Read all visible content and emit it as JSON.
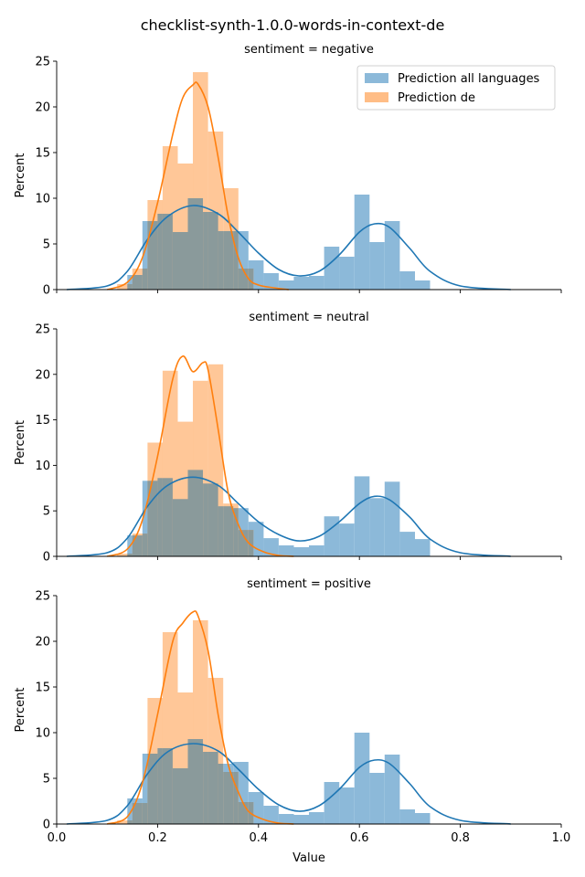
{
  "suptitle": "checklist-synth-1.0.0-words-in-context-de",
  "legend": {
    "placement": "top-right of first panel",
    "entries": [
      "Prediction all languages",
      "Prediction de"
    ]
  },
  "colors": {
    "all": "#1f77b4",
    "de": "#ff7f0e",
    "all_fill": "#8cb9d9",
    "de_fill": "#ffbd86",
    "overlap_fill": "#8a9a9b"
  },
  "chart_data": [
    {
      "type": "histogram",
      "title": "sentiment = negative",
      "xlabel": "",
      "ylabel": "Percent",
      "xlim": [
        0.0,
        1.0
      ],
      "ylim": [
        0,
        25
      ],
      "xticks": [
        "0.0",
        "0.2",
        "0.4",
        "0.6",
        "0.8",
        "1.0"
      ],
      "yticks": [
        "0",
        "5",
        "10",
        "15",
        "20",
        "25"
      ],
      "bin_width": 0.03,
      "series": [
        {
          "name": "Prediction all languages",
          "bin_starts": [
            0.14,
            0.17,
            0.2,
            0.23,
            0.26,
            0.29,
            0.32,
            0.35,
            0.38,
            0.41,
            0.44,
            0.47,
            0.5,
            0.53,
            0.56,
            0.59,
            0.62,
            0.65,
            0.68,
            0.71
          ],
          "values": [
            1.6,
            7.5,
            8.3,
            6.3,
            10.0,
            8.5,
            6.4,
            6.4,
            3.2,
            1.8,
            1.0,
            1.4,
            1.5,
            4.7,
            3.6,
            10.4,
            5.2,
            7.5,
            2.0,
            1.0
          ],
          "kde_x": [
            0.02,
            0.1,
            0.14,
            0.18,
            0.22,
            0.27,
            0.32,
            0.36,
            0.4,
            0.44,
            0.48,
            0.52,
            0.56,
            0.6,
            0.63,
            0.66,
            0.7,
            0.74,
            0.8,
            0.9
          ],
          "kde_y": [
            0.0,
            0.4,
            2.0,
            5.5,
            8.0,
            9.2,
            8.3,
            6.3,
            4.0,
            2.2,
            1.5,
            2.0,
            3.8,
            6.3,
            7.2,
            6.8,
            4.5,
            2.0,
            0.4,
            0.0
          ]
        },
        {
          "name": "Prediction de",
          "bin_starts": [
            0.12,
            0.15,
            0.18,
            0.21,
            0.24,
            0.27,
            0.3,
            0.33,
            0.36
          ],
          "values": [
            0.6,
            2.3,
            9.8,
            15.7,
            13.8,
            23.8,
            17.3,
            11.1,
            2.3
          ],
          "kde_x": [
            0.1,
            0.14,
            0.17,
            0.2,
            0.23,
            0.25,
            0.27,
            0.28,
            0.3,
            0.32,
            0.34,
            0.36,
            0.38,
            0.4,
            0.43,
            0.46
          ],
          "kde_y": [
            0.0,
            0.8,
            3.5,
            9.5,
            17.0,
            21.0,
            22.4,
            22.5,
            20.0,
            14.5,
            8.0,
            3.5,
            1.2,
            0.5,
            0.2,
            0.0
          ]
        }
      ]
    },
    {
      "type": "histogram",
      "title": "sentiment = neutral",
      "xlabel": "",
      "ylabel": "Percent",
      "xlim": [
        0.0,
        1.0
      ],
      "ylim": [
        0,
        25
      ],
      "xticks": [
        "0.0",
        "0.2",
        "0.4",
        "0.6",
        "0.8",
        "1.0"
      ],
      "yticks": [
        "0",
        "5",
        "10",
        "15",
        "20",
        "25"
      ],
      "bin_width": 0.03,
      "series": [
        {
          "name": "Prediction all languages",
          "bin_starts": [
            0.14,
            0.17,
            0.2,
            0.23,
            0.26,
            0.29,
            0.32,
            0.35,
            0.38,
            0.41,
            0.44,
            0.47,
            0.5,
            0.53,
            0.56,
            0.59,
            0.62,
            0.65,
            0.68,
            0.71
          ],
          "values": [
            2.3,
            8.3,
            8.6,
            6.3,
            9.5,
            8.0,
            5.5,
            5.3,
            3.8,
            2.0,
            1.2,
            1.0,
            1.2,
            4.4,
            3.6,
            8.8,
            6.4,
            8.2,
            2.7,
            1.9
          ],
          "kde_x": [
            0.02,
            0.1,
            0.14,
            0.18,
            0.22,
            0.27,
            0.32,
            0.36,
            0.4,
            0.44,
            0.48,
            0.52,
            0.56,
            0.6,
            0.63,
            0.66,
            0.7,
            0.74,
            0.8,
            0.9
          ],
          "kde_y": [
            0.0,
            0.4,
            2.0,
            5.5,
            7.8,
            8.7,
            7.8,
            5.8,
            3.8,
            2.4,
            1.7,
            2.2,
            3.8,
            5.8,
            6.6,
            6.2,
            4.3,
            1.9,
            0.4,
            0.0
          ]
        },
        {
          "name": "Prediction de",
          "bin_starts": [
            0.12,
            0.15,
            0.18,
            0.21,
            0.24,
            0.27,
            0.3,
            0.33,
            0.36
          ],
          "values": [
            0.3,
            2.5,
            12.5,
            20.4,
            14.8,
            19.3,
            21.1,
            5.8,
            2.9
          ],
          "kde_x": [
            0.1,
            0.14,
            0.17,
            0.2,
            0.23,
            0.25,
            0.27,
            0.29,
            0.3,
            0.32,
            0.34,
            0.36,
            0.38,
            0.41,
            0.44,
            0.47
          ],
          "kde_y": [
            0.0,
            0.8,
            4.0,
            11.0,
            19.5,
            22.0,
            20.3,
            21.3,
            20.5,
            14.0,
            7.0,
            3.5,
            1.5,
            0.5,
            0.1,
            0.0
          ]
        }
      ]
    },
    {
      "type": "histogram",
      "title": "sentiment = positive",
      "xlabel": "Value",
      "ylabel": "Percent",
      "xlim": [
        0.0,
        1.0
      ],
      "ylim": [
        0,
        25
      ],
      "xticks": [
        "0.0",
        "0.2",
        "0.4",
        "0.6",
        "0.8",
        "1.0"
      ],
      "yticks": [
        "0",
        "5",
        "10",
        "15",
        "20",
        "25"
      ],
      "bin_width": 0.03,
      "series": [
        {
          "name": "Prediction all languages",
          "bin_starts": [
            0.14,
            0.17,
            0.2,
            0.23,
            0.26,
            0.29,
            0.32,
            0.35,
            0.38,
            0.41,
            0.44,
            0.47,
            0.5,
            0.53,
            0.56,
            0.59,
            0.62,
            0.65,
            0.68,
            0.71
          ],
          "values": [
            2.8,
            7.7,
            8.3,
            6.1,
            9.3,
            7.9,
            6.6,
            6.8,
            3.5,
            2.0,
            1.1,
            1.0,
            1.3,
            4.6,
            4.0,
            10.0,
            5.6,
            7.6,
            1.6,
            1.2
          ],
          "kde_x": [
            0.02,
            0.1,
            0.14,
            0.18,
            0.22,
            0.27,
            0.32,
            0.36,
            0.4,
            0.44,
            0.48,
            0.52,
            0.56,
            0.6,
            0.63,
            0.66,
            0.7,
            0.74,
            0.8,
            0.9
          ],
          "kde_y": [
            0.0,
            0.4,
            2.0,
            5.5,
            7.9,
            8.8,
            8.0,
            6.0,
            3.8,
            2.1,
            1.4,
            2.0,
            3.8,
            6.2,
            7.0,
            6.6,
            4.4,
            1.9,
            0.4,
            0.0
          ]
        },
        {
          "name": "Prediction de",
          "bin_starts": [
            0.12,
            0.15,
            0.18,
            0.21,
            0.24,
            0.27,
            0.3,
            0.33,
            0.36
          ],
          "values": [
            0.4,
            2.3,
            13.8,
            21.0,
            14.4,
            22.3,
            16.0,
            5.7,
            2.4
          ],
          "kde_x": [
            0.1,
            0.14,
            0.17,
            0.2,
            0.23,
            0.25,
            0.27,
            0.28,
            0.3,
            0.32,
            0.34,
            0.36,
            0.38,
            0.41,
            0.44,
            0.47
          ],
          "kde_y": [
            0.0,
            0.8,
            4.5,
            12.0,
            20.0,
            22.0,
            23.2,
            22.8,
            19.0,
            12.0,
            6.5,
            3.5,
            1.4,
            0.5,
            0.1,
            0.0
          ]
        }
      ]
    }
  ]
}
